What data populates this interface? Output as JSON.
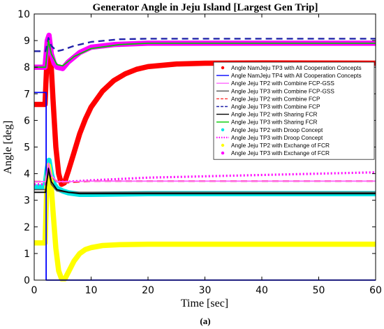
{
  "chart_data": {
    "type": "line",
    "title": "Generator Angle in Jeju Island [Largest Gen Trip]",
    "xlabel": "Time [sec]",
    "ylabel": "Angle [deg]",
    "xlim": [
      0,
      60
    ],
    "ylim": [
      0,
      10
    ],
    "xticks": [
      "0",
      "10",
      "20",
      "30",
      "40",
      "50",
      "60"
    ],
    "yticks": [
      "0",
      "1",
      "2",
      "3",
      "4",
      "5",
      "6",
      "7",
      "8",
      "9",
      "10"
    ],
    "grid": false,
    "legend_position": "right",
    "caption": "(a)",
    "series": [
      {
        "name": "Angle NamJeju TP3 with All Cooperation Concepts",
        "color": "#ff0000",
        "style": "thick",
        "points": [
          [
            0,
            6.6
          ],
          [
            1.9,
            6.6
          ],
          [
            2.3,
            8.6
          ],
          [
            2.6,
            9.1
          ],
          [
            2.9,
            8.4
          ],
          [
            3.3,
            6.8
          ],
          [
            3.8,
            5.0
          ],
          [
            4.3,
            4.0
          ],
          [
            4.8,
            3.6
          ],
          [
            5.3,
            3.65
          ],
          [
            6,
            4.1
          ],
          [
            7,
            4.8
          ],
          [
            8,
            5.5
          ],
          [
            9,
            6.05
          ],
          [
            10,
            6.5
          ],
          [
            12,
            7.1
          ],
          [
            14,
            7.5
          ],
          [
            16,
            7.75
          ],
          [
            18,
            7.92
          ],
          [
            20,
            8.02
          ],
          [
            25,
            8.12
          ],
          [
            30,
            8.15
          ],
          [
            40,
            8.16
          ],
          [
            60,
            8.15
          ]
        ]
      },
      {
        "name": "Angle NamJeju TP4 with All Cooperation Concepts",
        "color": "#0000ff",
        "style": "solid",
        "points": [
          [
            0,
            7.05
          ],
          [
            2.1,
            7.05
          ],
          [
            2.1,
            0
          ],
          [
            60,
            0
          ]
        ]
      },
      {
        "name": "Angle Jeju TP2 with Combine FCP-GSS",
        "color": "#ff66ff",
        "style": "solid",
        "points": [
          [
            0,
            3.7
          ],
          [
            2,
            3.7
          ],
          [
            2.5,
            4.4
          ],
          [
            3,
            3.95
          ],
          [
            4,
            3.7
          ],
          [
            6,
            3.7
          ],
          [
            10,
            3.72
          ],
          [
            60,
            3.72
          ]
        ]
      },
      {
        "name": "Angle Jeju TP3 with Combine FCP-GSS",
        "color": "#555555",
        "style": "solid",
        "points": [
          [
            0,
            3.4
          ],
          [
            2,
            3.4
          ],
          [
            2.5,
            4.1
          ],
          [
            3,
            3.6
          ],
          [
            4,
            3.35
          ],
          [
            6,
            3.3
          ],
          [
            60,
            3.3
          ]
        ]
      },
      {
        "name": "Angle Jeju TP2 with Combine FCP",
        "color": "#ff3333",
        "style": "dashed",
        "points": [
          [
            0,
            3.7
          ],
          [
            2,
            3.7
          ],
          [
            2.5,
            4.3
          ],
          [
            3,
            3.9
          ],
          [
            4,
            3.7
          ],
          [
            5,
            3.65
          ],
          [
            7,
            3.68
          ],
          [
            10,
            3.72
          ],
          [
            60,
            3.72
          ]
        ]
      },
      {
        "name": "Angle Jeju TP3 with Combine FCP",
        "color": "#2222aa",
        "style": "dashed",
        "points": [
          [
            0,
            8.6
          ],
          [
            2,
            8.6
          ],
          [
            2.5,
            9.1
          ],
          [
            3,
            8.8
          ],
          [
            4,
            8.6
          ],
          [
            5,
            8.65
          ],
          [
            7,
            8.8
          ],
          [
            10,
            8.95
          ],
          [
            15,
            9.05
          ],
          [
            20,
            9.07
          ],
          [
            60,
            9.07
          ]
        ]
      },
      {
        "name": "Angle Jeju TP2 with Sharing FCR",
        "color": "#000000",
        "style": "solid",
        "points": [
          [
            0,
            3.3
          ],
          [
            2,
            3.3
          ],
          [
            2.5,
            4.2
          ],
          [
            3,
            3.7
          ],
          [
            4,
            3.4
          ],
          [
            6,
            3.3
          ],
          [
            8,
            3.25
          ],
          [
            60,
            3.25
          ]
        ]
      },
      {
        "name": "Angle Jeju TP3 with Sharing FCR",
        "color": "#00cc00",
        "style": "solid",
        "points": [
          [
            0,
            8.0
          ],
          [
            2,
            8.0
          ],
          [
            2.5,
            9.0
          ],
          [
            3,
            8.5
          ],
          [
            4,
            8.1
          ],
          [
            5,
            8.05
          ],
          [
            7,
            8.4
          ],
          [
            10,
            8.7
          ],
          [
            15,
            8.85
          ],
          [
            20,
            8.9
          ],
          [
            60,
            8.9
          ]
        ]
      },
      {
        "name": "Angle Jeju TP2 with Droop Concept",
        "color": "#00e5e5",
        "style": "thick",
        "points": [
          [
            0,
            3.5
          ],
          [
            1.9,
            3.5
          ],
          [
            2.3,
            4.2
          ],
          [
            2.6,
            4.5
          ],
          [
            3,
            4.0
          ],
          [
            3.5,
            3.6
          ],
          [
            4,
            3.45
          ],
          [
            5,
            3.35
          ],
          [
            6,
            3.28
          ],
          [
            8,
            3.22
          ],
          [
            10,
            3.22
          ],
          [
            20,
            3.25
          ],
          [
            60,
            3.25
          ]
        ]
      },
      {
        "name": "Angle Jeju TP3 with Droop Concept",
        "color": "#ff00ff",
        "style": "dotted",
        "points": [
          [
            0,
            3.6
          ],
          [
            2,
            3.6
          ],
          [
            2.5,
            4.2
          ],
          [
            3,
            3.9
          ],
          [
            4,
            3.7
          ],
          [
            6,
            3.7
          ],
          [
            10,
            3.75
          ],
          [
            20,
            3.85
          ],
          [
            40,
            3.95
          ],
          [
            60,
            4.05
          ]
        ]
      },
      {
        "name": "Angle Jeju TP2 with Exchange of FCR",
        "color": "#ffff00",
        "style": "thick",
        "points": [
          [
            0,
            1.4
          ],
          [
            1.9,
            1.4
          ],
          [
            2.2,
            3.4
          ],
          [
            2.5,
            4.3
          ],
          [
            2.9,
            3.8
          ],
          [
            3.3,
            2.6
          ],
          [
            3.8,
            1.2
          ],
          [
            4.3,
            0.35
          ],
          [
            4.8,
            0.05
          ],
          [
            5.4,
            0.05
          ],
          [
            6,
            0.3
          ],
          [
            7,
            0.72
          ],
          [
            8,
            1.0
          ],
          [
            9,
            1.15
          ],
          [
            10,
            1.22
          ],
          [
            12,
            1.3
          ],
          [
            15,
            1.33
          ],
          [
            20,
            1.35
          ],
          [
            60,
            1.35
          ]
        ]
      },
      {
        "name": "Angle Jeju TP3 with Exchange of FCR",
        "color": "#ff00ff",
        "style": "thick",
        "points": [
          [
            0,
            8.0
          ],
          [
            1.9,
            8.0
          ],
          [
            2.3,
            9.0
          ],
          [
            2.6,
            9.2
          ],
          [
            3,
            8.5
          ],
          [
            3.5,
            8.15
          ],
          [
            4,
            8.0
          ],
          [
            5,
            7.95
          ],
          [
            6,
            8.2
          ],
          [
            8,
            8.55
          ],
          [
            10,
            8.75
          ],
          [
            14,
            8.85
          ],
          [
            20,
            8.9
          ],
          [
            60,
            8.9
          ]
        ]
      }
    ]
  }
}
